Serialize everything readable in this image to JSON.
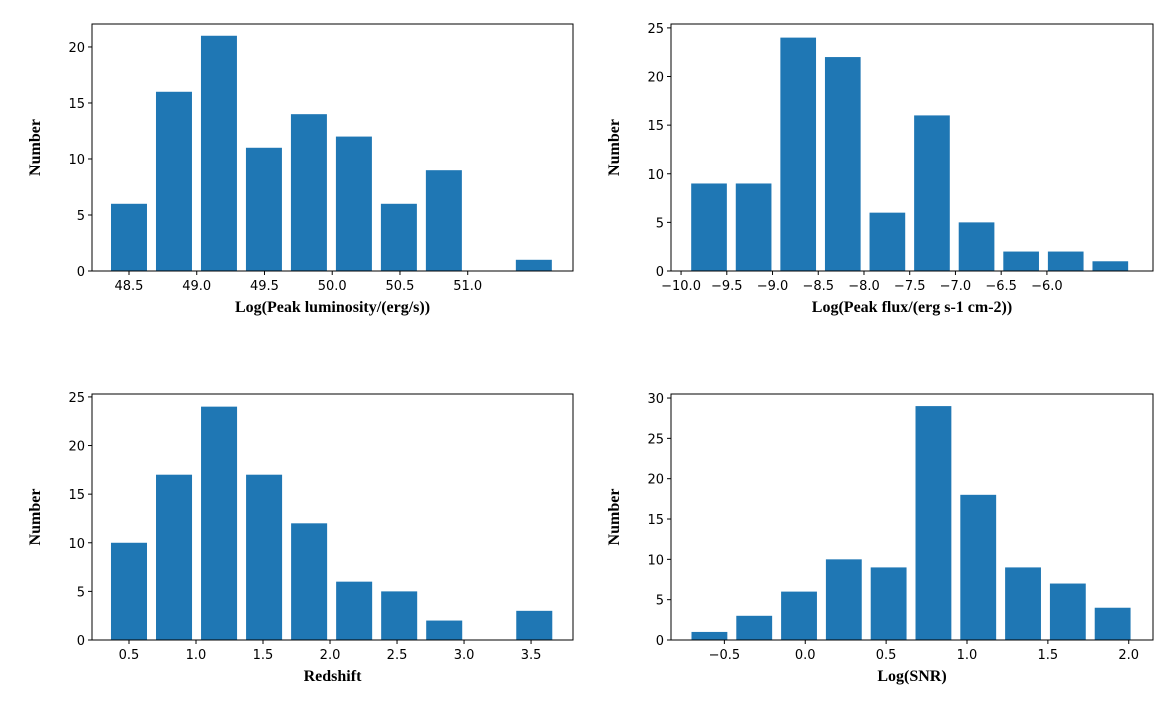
{
  "chart_data": [
    {
      "type": "histogram",
      "color": "#1f77b4",
      "xlabel": "Log(Peak luminosity/(erg/s))",
      "ylabel": "Number",
      "bins": [
        48.334,
        48.666,
        48.998,
        49.33,
        49.662,
        49.994,
        50.326,
        50.658,
        50.99,
        51.322,
        51.654
      ],
      "values": [
        6,
        16,
        21,
        11,
        14,
        12,
        6,
        9,
        0,
        1
      ],
      "xlim": [
        48.227,
        51.777
      ],
      "ylim": [
        0,
        22.05
      ],
      "xticks": [
        48.5,
        {
          "value": 49,
          "label": "49.0"
        },
        49.5,
        {
          "value": 50,
          "label": "50.0"
        },
        50.5,
        {
          "value": 51,
          "label": "51.0"
        }
      ],
      "yticks": [
        0,
        5,
        10,
        15,
        20
      ]
    },
    {
      "type": "histogram",
      "color": "#1f77b4",
      "xlabel": "Log(Peak flux/(erg s-1 cm-2))",
      "ylabel": "Number",
      "bins": [
        -9.938,
        -9.4505,
        -8.963,
        -8.4755,
        -7.988,
        -7.5005,
        -7.013,
        -6.5255,
        -6.038,
        -5.5505,
        -5.063
      ],
      "values": [
        9,
        9,
        24,
        22,
        6,
        16,
        5,
        2,
        2,
        1
      ],
      "xlim": [
        -10.11,
        -4.84
      ],
      "ylim": [
        0,
        25.4
      ],
      "xticks": [
        {
          "value": -10,
          "label": "−10.0"
        },
        {
          "value": -9.5,
          "label": "−9.5"
        },
        {
          "value": -9,
          "label": "−9.0"
        },
        {
          "value": -8.5,
          "label": "−8.5"
        },
        {
          "value": -8,
          "label": "−8.0"
        },
        {
          "value": -7.5,
          "label": "−7.5"
        },
        {
          "value": -7,
          "label": "−7.0"
        },
        {
          "value": -6.5,
          "label": "−6.5"
        },
        {
          "value": -6,
          "label": "−6.0"
        }
      ],
      "yticks": [
        0,
        5,
        10,
        15,
        20,
        25
      ]
    },
    {
      "type": "histogram",
      "color": "#1f77b4",
      "xlabel": "Redshift",
      "ylabel": "Number",
      "bins": [
        0.332,
        0.668,
        1.004,
        1.34,
        1.676,
        2.012,
        2.348,
        2.684,
        3.02,
        3.356,
        3.692
      ],
      "values": [
        10,
        17,
        24,
        17,
        12,
        6,
        5,
        2,
        0,
        3
      ],
      "xlim": [
        0.224,
        3.813
      ],
      "ylim": [
        0,
        25.3
      ],
      "xticks": [
        0.5,
        {
          "value": 1,
          "label": "1.0"
        },
        1.5,
        {
          "value": 2,
          "label": "2.0"
        },
        2.5,
        {
          "value": 3,
          "label": "3.0"
        },
        3.5
      ],
      "yticks": [
        0,
        5,
        10,
        15,
        20,
        25
      ]
    },
    {
      "type": "histogram",
      "color": "#1f77b4",
      "xlabel": "Log(SNR)",
      "ylabel": "Number",
      "bins": [
        -0.731,
        -0.454,
        -0.177,
        0.1,
        0.377,
        0.654,
        0.931,
        1.208,
        1.485,
        1.762,
        2.039
      ],
      "values": [
        1,
        3,
        6,
        10,
        9,
        29,
        18,
        9,
        7,
        4
      ],
      "xlim": [
        -0.83,
        2.15
      ],
      "ylim": [
        0,
        30.5
      ],
      "xticks": [
        {
          "value": -0.5,
          "label": "−0.5"
        },
        {
          "value": 0,
          "label": "0.0"
        },
        0.5,
        {
          "value": 1,
          "label": "1.0"
        },
        1.5,
        {
          "value": 2,
          "label": "2.0"
        }
      ],
      "yticks": [
        0,
        5,
        10,
        15,
        20,
        25,
        30
      ]
    }
  ]
}
